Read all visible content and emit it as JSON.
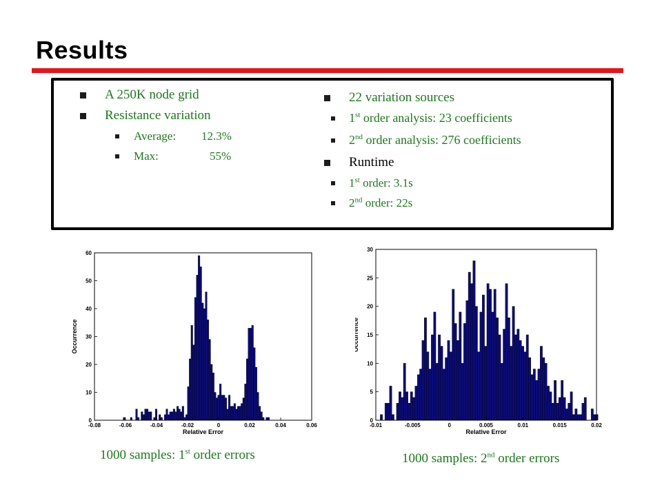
{
  "slide": {
    "title": "Results"
  },
  "left_bullets": [
    {
      "text": "A 250K node grid"
    },
    {
      "text": "Resistance variation",
      "sub": [
        {
          "label": "Average:",
          "value": "12.3%"
        },
        {
          "label": "Max:",
          "value": "55%"
        }
      ]
    }
  ],
  "right_bullets": {
    "sources": {
      "text": "22 variation sources",
      "first": {
        "num": "1",
        "sup": "st",
        "text": " order analysis: 23 coefficients"
      },
      "second": {
        "num": "2",
        "sup": "nd",
        "text": " order analysis: 276 coefficients"
      }
    },
    "runtime": {
      "text": "Runtime",
      "first": {
        "num": "1",
        "sup": "st",
        "text": " order: 3.1s"
      },
      "second": {
        "num": "2",
        "sup": "nd",
        "text": " order: 22s"
      }
    }
  },
  "captions": {
    "left": {
      "pre": "1000 samples: 1",
      "sup": "st",
      "post": " order errors"
    },
    "right": {
      "pre": "1000 samples: 2",
      "sup": "nd",
      "post": " order errors"
    }
  },
  "colors": {
    "accent": "#e8141a",
    "green_text": "#1a7a1a",
    "bar_fill": "#0b0b7a"
  },
  "chart_data": [
    {
      "type": "bar",
      "title": "",
      "xlabel": "Relative Error",
      "ylabel": "Occurrence",
      "xlim": [
        -0.08,
        0.06
      ],
      "ylim": [
        0,
        60
      ],
      "xticks": [
        "-0.08",
        "-0.06",
        "-0.04",
        "-0.02",
        "0",
        "0.02",
        "0.04",
        "0.06"
      ],
      "yticks": [
        "0",
        "10",
        "20",
        "30",
        "40",
        "50",
        "60"
      ],
      "bin_start": -0.0615,
      "bin_width": 0.00115,
      "values": [
        1,
        0,
        0,
        0,
        1,
        0,
        0,
        4,
        1,
        0,
        3,
        2,
        4,
        4,
        3,
        3,
        0,
        1,
        4,
        0,
        2,
        1,
        0,
        2,
        4,
        2,
        3,
        3,
        4,
        3,
        5,
        4,
        3,
        5,
        1,
        2,
        12,
        22,
        34,
        27,
        44,
        52,
        59,
        55,
        42,
        40,
        46,
        36,
        29,
        20,
        17,
        10,
        8,
        9,
        13,
        9,
        9,
        8,
        4,
        9,
        5,
        5,
        6,
        4,
        5,
        5,
        6,
        8,
        13,
        22,
        33,
        33,
        34,
        26,
        19,
        10,
        5,
        3,
        1,
        0,
        1,
        1
      ]
    },
    {
      "type": "bar",
      "title": "",
      "xlabel": "Relative Error",
      "ylabel": "Occurrence",
      "xlim": [
        -0.01,
        0.02
      ],
      "ylim": [
        0,
        30
      ],
      "xticks": [
        "-0.01",
        "-0.005",
        "0",
        "0.005",
        "0.01",
        "0.015",
        "0.02"
      ],
      "yticks": [
        "0",
        "5",
        "10",
        "15",
        "20",
        "25",
        "30"
      ],
      "bin_start": -0.0094,
      "bin_width": 0.000315,
      "values": [
        1,
        0,
        3,
        3,
        6,
        1,
        0,
        3,
        5,
        4,
        10,
        5,
        3,
        5,
        4,
        6,
        8,
        9,
        14,
        18,
        12,
        9,
        15,
        19,
        10,
        15,
        13,
        9,
        11,
        14,
        12,
        23,
        17,
        14,
        19,
        10,
        17,
        21,
        26,
        24,
        28,
        20,
        12,
        19,
        22,
        13,
        24,
        23,
        19,
        23,
        18,
        15,
        10,
        16,
        24,
        18,
        13,
        20,
        15,
        16,
        14,
        13,
        12,
        15,
        11,
        8,
        9,
        7,
        9,
        13,
        11,
        10,
        6,
        5,
        3,
        7,
        3,
        4,
        7,
        4,
        2,
        3,
        5,
        1,
        2,
        1,
        1,
        3,
        4,
        0,
        0,
        2,
        1,
        1
      ]
    }
  ]
}
